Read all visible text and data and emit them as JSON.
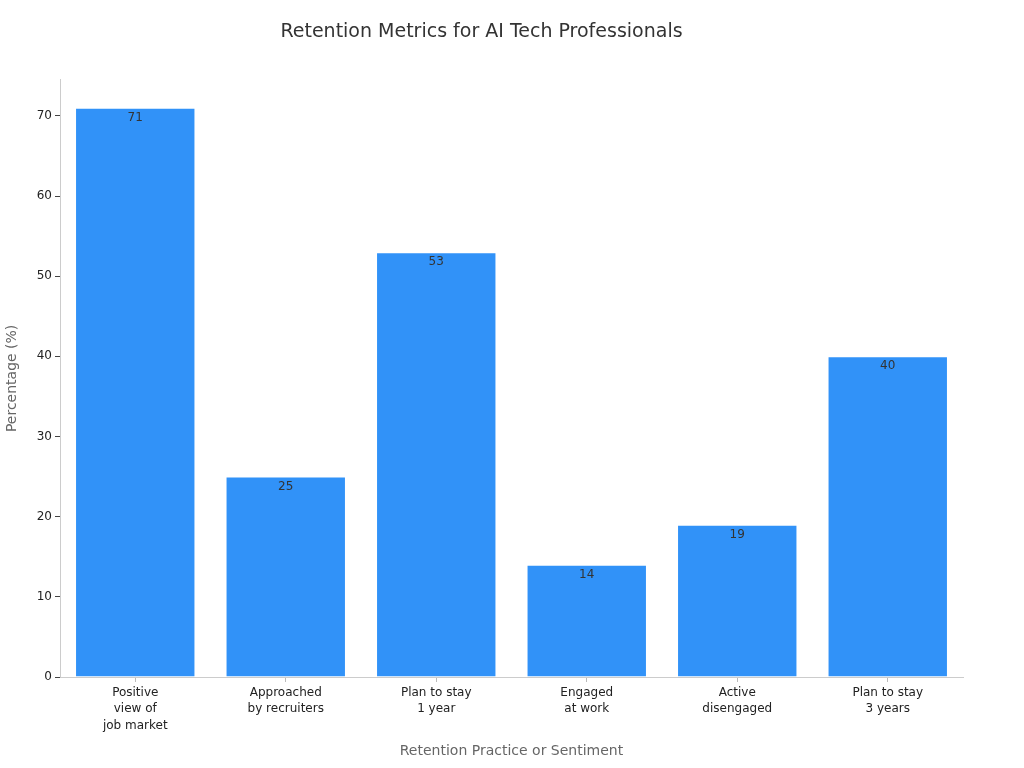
{
  "chart_data": {
    "type": "bar",
    "title": "Retention Metrics for AI Tech Professionals",
    "xlabel": "Retention Practice or Sentiment",
    "ylabel": "Percentage (%)",
    "categories": [
      "Positive\nview of\njob market",
      "Approached\nby recruiters",
      "Plan to stay\n1 year",
      "Engaged\nat work",
      "Active\ndisengaged",
      "Plan to stay\n3 years"
    ],
    "values": [
      71,
      25,
      53,
      14,
      19,
      40
    ],
    "color": "#3192f8",
    "ylim": [
      0,
      74.5
    ],
    "yticks": [
      0,
      10,
      20,
      30,
      40,
      50,
      60,
      70
    ],
    "data_labels": true
  }
}
